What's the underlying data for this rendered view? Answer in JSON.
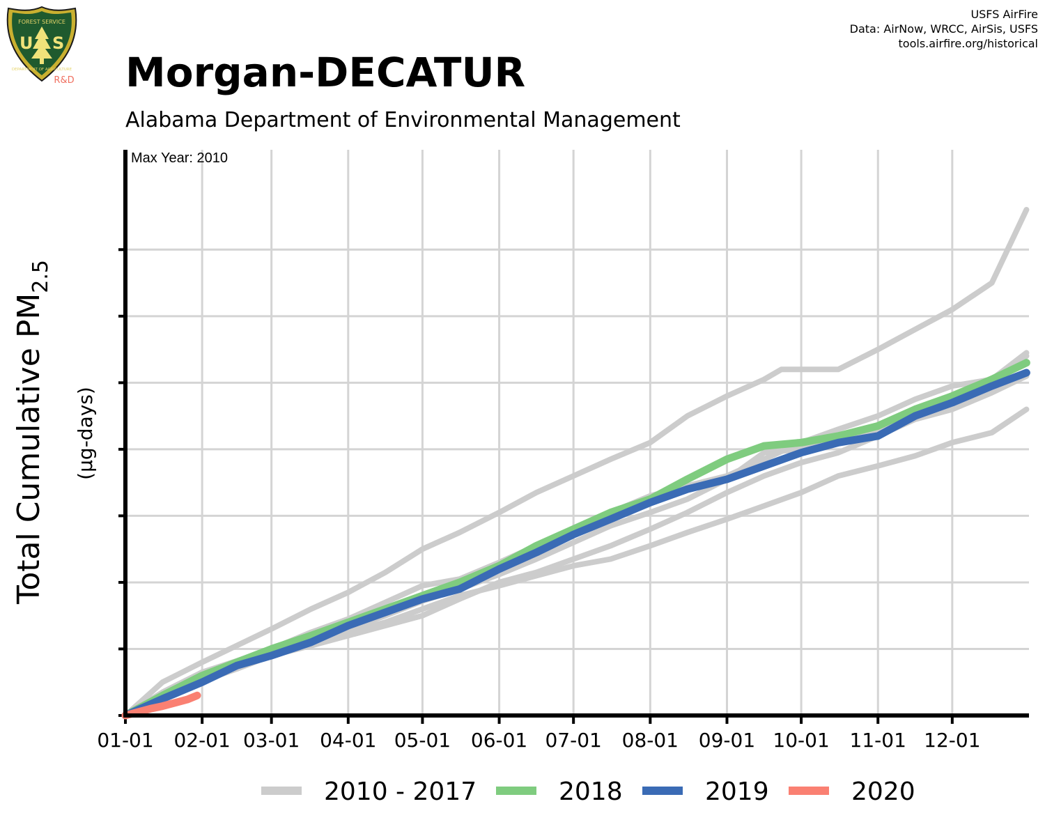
{
  "credits": {
    "line1": "USFS AirFire",
    "line2": "Data: AirNow, WRCC, AirSis, USFS",
    "line3": "tools.airfire.org/historical"
  },
  "logo": {
    "icon": "us-forest-service-shield-icon",
    "badge_text": "R&D"
  },
  "chart_data": {
    "type": "line",
    "title": "Morgan-DECATUR",
    "subtitle": "Alabama Department of Environmental Management",
    "annotation": "Max Year: 2010",
    "ylabel_main": "Total Cumulative PM",
    "ylabel_sub": "2.5",
    "ylabel_units": "(µg-days)",
    "xlabel": "",
    "x_tick_labels": [
      "01-01",
      "02-01",
      "03-01",
      "04-01",
      "05-01",
      "06-01",
      "07-01",
      "08-01",
      "09-01",
      "10-01",
      "11-01",
      "12-01"
    ],
    "x_tick_days": [
      0,
      31,
      59,
      90,
      120,
      151,
      181,
      212,
      243,
      273,
      304,
      334
    ],
    "xlim": [
      0,
      365
    ],
    "ylim": [
      0,
      8.5
    ],
    "y_ticks": [
      0,
      1,
      2,
      3,
      4,
      5,
      6,
      7
    ],
    "grid": true,
    "legend_position": "bottom",
    "series": [
      {
        "name": "2010 - 2017",
        "color": "#cccccc",
        "group": "historical",
        "x": [
          0,
          15,
          31,
          45,
          59,
          75,
          90,
          105,
          120,
          135,
          151,
          166,
          181,
          196,
          212,
          227,
          243,
          258,
          265,
          273,
          288,
          304,
          319,
          334,
          350,
          364
        ],
        "values": [
          0,
          0.5,
          0.8,
          1.05,
          1.3,
          1.6,
          1.85,
          2.15,
          2.5,
          2.75,
          3.05,
          3.35,
          3.6,
          3.85,
          4.1,
          4.5,
          4.8,
          5.05,
          5.2,
          5.2,
          5.2,
          5.5,
          5.8,
          6.1,
          6.5,
          7.6
        ]
      },
      {
        "name": "",
        "color": "#cccccc",
        "group": "historical",
        "x": [
          0,
          15,
          31,
          45,
          59,
          75,
          90,
          105,
          120,
          135,
          151,
          166,
          181,
          196,
          212,
          227,
          243,
          258,
          273,
          288,
          304,
          319,
          334,
          350,
          364
        ],
        "values": [
          0,
          0.32,
          0.65,
          0.8,
          1.0,
          1.25,
          1.45,
          1.7,
          1.95,
          2.05,
          2.3,
          2.55,
          2.8,
          3.05,
          3.3,
          3.45,
          3.6,
          3.85,
          4.1,
          4.3,
          4.5,
          4.75,
          4.95,
          5.05,
          5.45
        ]
      },
      {
        "name": "",
        "color": "#cccccc",
        "group": "historical",
        "x": [
          0,
          15,
          31,
          45,
          59,
          75,
          90,
          105,
          120,
          135,
          151,
          166,
          181,
          196,
          212,
          227,
          243,
          258,
          273,
          288,
          304,
          319,
          334,
          350,
          364
        ],
        "values": [
          0,
          0.28,
          0.52,
          0.7,
          0.9,
          1.05,
          1.2,
          1.35,
          1.5,
          1.75,
          2.0,
          2.15,
          2.35,
          2.55,
          2.8,
          3.05,
          3.35,
          3.6,
          3.8,
          3.95,
          4.2,
          4.45,
          4.6,
          4.85,
          5.1
        ]
      },
      {
        "name": "",
        "color": "#cccccc",
        "group": "historical",
        "x": [
          0,
          15,
          31,
          45,
          59,
          75,
          90,
          105,
          120,
          135,
          151,
          166,
          181,
          196,
          212,
          227,
          243,
          258,
          273,
          288,
          304,
          319,
          334,
          350,
          364
        ],
        "values": [
          0,
          0.28,
          0.55,
          0.72,
          0.95,
          1.1,
          1.25,
          1.4,
          1.6,
          1.8,
          1.95,
          2.1,
          2.25,
          2.35,
          2.55,
          2.75,
          2.95,
          3.15,
          3.35,
          3.6,
          3.75,
          3.9,
          4.1,
          4.25,
          4.6
        ]
      },
      {
        "name": "",
        "color": "#cccccc",
        "group": "historical",
        "x": [
          0,
          15,
          31,
          45,
          59,
          75,
          90,
          105,
          120,
          135,
          151,
          166,
          181,
          196,
          212,
          227,
          243,
          258,
          273,
          288,
          304,
          319,
          334,
          350,
          364
        ],
        "values": [
          0,
          0.35,
          0.65,
          0.82,
          1.0,
          1.15,
          1.3,
          1.5,
          1.72,
          1.9,
          2.12,
          2.35,
          2.6,
          2.85,
          3.05,
          3.25,
          3.55,
          3.95,
          4.0,
          4.15,
          4.3,
          4.55,
          4.8,
          5.0,
          5.4
        ]
      },
      {
        "name": "2018",
        "color": "#7fcc7f",
        "group": "current",
        "x": [
          0,
          15,
          31,
          45,
          59,
          75,
          90,
          105,
          120,
          135,
          151,
          166,
          181,
          196,
          212,
          227,
          243,
          258,
          273,
          288,
          304,
          319,
          334,
          350,
          364
        ],
        "values": [
          0,
          0.3,
          0.6,
          0.8,
          1.0,
          1.2,
          1.4,
          1.6,
          1.8,
          2.0,
          2.25,
          2.55,
          2.8,
          3.05,
          3.25,
          3.55,
          3.85,
          4.05,
          4.1,
          4.2,
          4.35,
          4.6,
          4.8,
          5.05,
          5.3
        ]
      },
      {
        "name": "2019",
        "color": "#3a6bb5",
        "group": "current",
        "x": [
          0,
          15,
          31,
          45,
          59,
          75,
          90,
          105,
          120,
          135,
          151,
          166,
          181,
          196,
          212,
          227,
          243,
          258,
          273,
          288,
          304,
          319,
          334,
          350,
          364
        ],
        "values": [
          0,
          0.25,
          0.5,
          0.75,
          0.9,
          1.1,
          1.35,
          1.55,
          1.75,
          1.9,
          2.2,
          2.45,
          2.72,
          2.95,
          3.2,
          3.4,
          3.55,
          3.75,
          3.95,
          4.1,
          4.2,
          4.5,
          4.7,
          4.95,
          5.15
        ]
      },
      {
        "name": "2020",
        "color": "#fa8072",
        "group": "current",
        "x": [
          0,
          5,
          10,
          15,
          20,
          25,
          29
        ],
        "values": [
          0,
          0.05,
          0.1,
          0.14,
          0.19,
          0.24,
          0.3
        ]
      }
    ]
  },
  "legend_items": [
    {
      "label": "2010 - 2017",
      "color": "#cccccc"
    },
    {
      "label": "2018",
      "color": "#7fcc7f"
    },
    {
      "label": "2019",
      "color": "#3a6bb5"
    },
    {
      "label": "2020",
      "color": "#fa8072"
    }
  ]
}
